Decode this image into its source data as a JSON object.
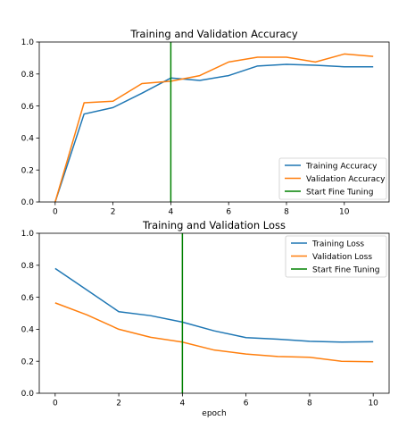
{
  "chart_data": [
    {
      "type": "line",
      "title": "Training and Validation Accuracy",
      "xlabel": "",
      "ylabel": "",
      "xlim": [
        -0.55,
        11.55
      ],
      "ylim": [
        0,
        1.0
      ],
      "xticks": [
        0,
        2,
        4,
        6,
        8,
        10
      ],
      "yticks": [
        0.0,
        0.2,
        0.4,
        0.6,
        0.8,
        1.0
      ],
      "grid": false,
      "legend": "lower-right",
      "x": [
        0,
        1,
        2,
        3,
        4,
        5,
        6,
        7,
        8,
        9,
        10,
        11
      ],
      "series": [
        {
          "name": "Training Accuracy",
          "color": "#1f77b4",
          "values": [
            0.0,
            0.55,
            0.59,
            0.68,
            0.775,
            0.76,
            0.79,
            0.85,
            0.86,
            0.855,
            0.845,
            0.845
          ]
        },
        {
          "name": "Validation Accuracy",
          "color": "#ff7f0e",
          "values": [
            0.0,
            0.62,
            0.63,
            0.74,
            0.755,
            0.79,
            0.875,
            0.905,
            0.905,
            0.875,
            0.925,
            0.91
          ]
        }
      ],
      "vlines": [
        {
          "name": "Start Fine Tuning",
          "color": "#008000",
          "x": 4
        }
      ]
    },
    {
      "type": "line",
      "title": "Training and Validation Loss",
      "xlabel": "epoch",
      "ylabel": "",
      "xlim": [
        -0.5,
        10.5
      ],
      "ylim": [
        0,
        1.0
      ],
      "xticks": [
        0,
        2,
        4,
        6,
        8,
        10
      ],
      "yticks": [
        0.0,
        0.2,
        0.4,
        0.6,
        0.8,
        1.0
      ],
      "grid": false,
      "legend": "upper-right",
      "x": [
        0,
        1,
        2,
        3,
        4,
        5,
        6,
        7,
        8,
        9,
        10
      ],
      "series": [
        {
          "name": "Training Loss",
          "color": "#1f77b4",
          "values": [
            0.78,
            0.645,
            0.51,
            0.485,
            0.445,
            0.39,
            0.348,
            0.338,
            0.325,
            0.32,
            0.322
          ]
        },
        {
          "name": "Validation Loss",
          "color": "#ff7f0e",
          "values": [
            0.565,
            0.49,
            0.4,
            0.35,
            0.32,
            0.27,
            0.245,
            0.23,
            0.225,
            0.2,
            0.197
          ]
        }
      ],
      "vlines": [
        {
          "name": "Start Fine Tuning",
          "color": "#008000",
          "x": 4
        }
      ]
    }
  ]
}
